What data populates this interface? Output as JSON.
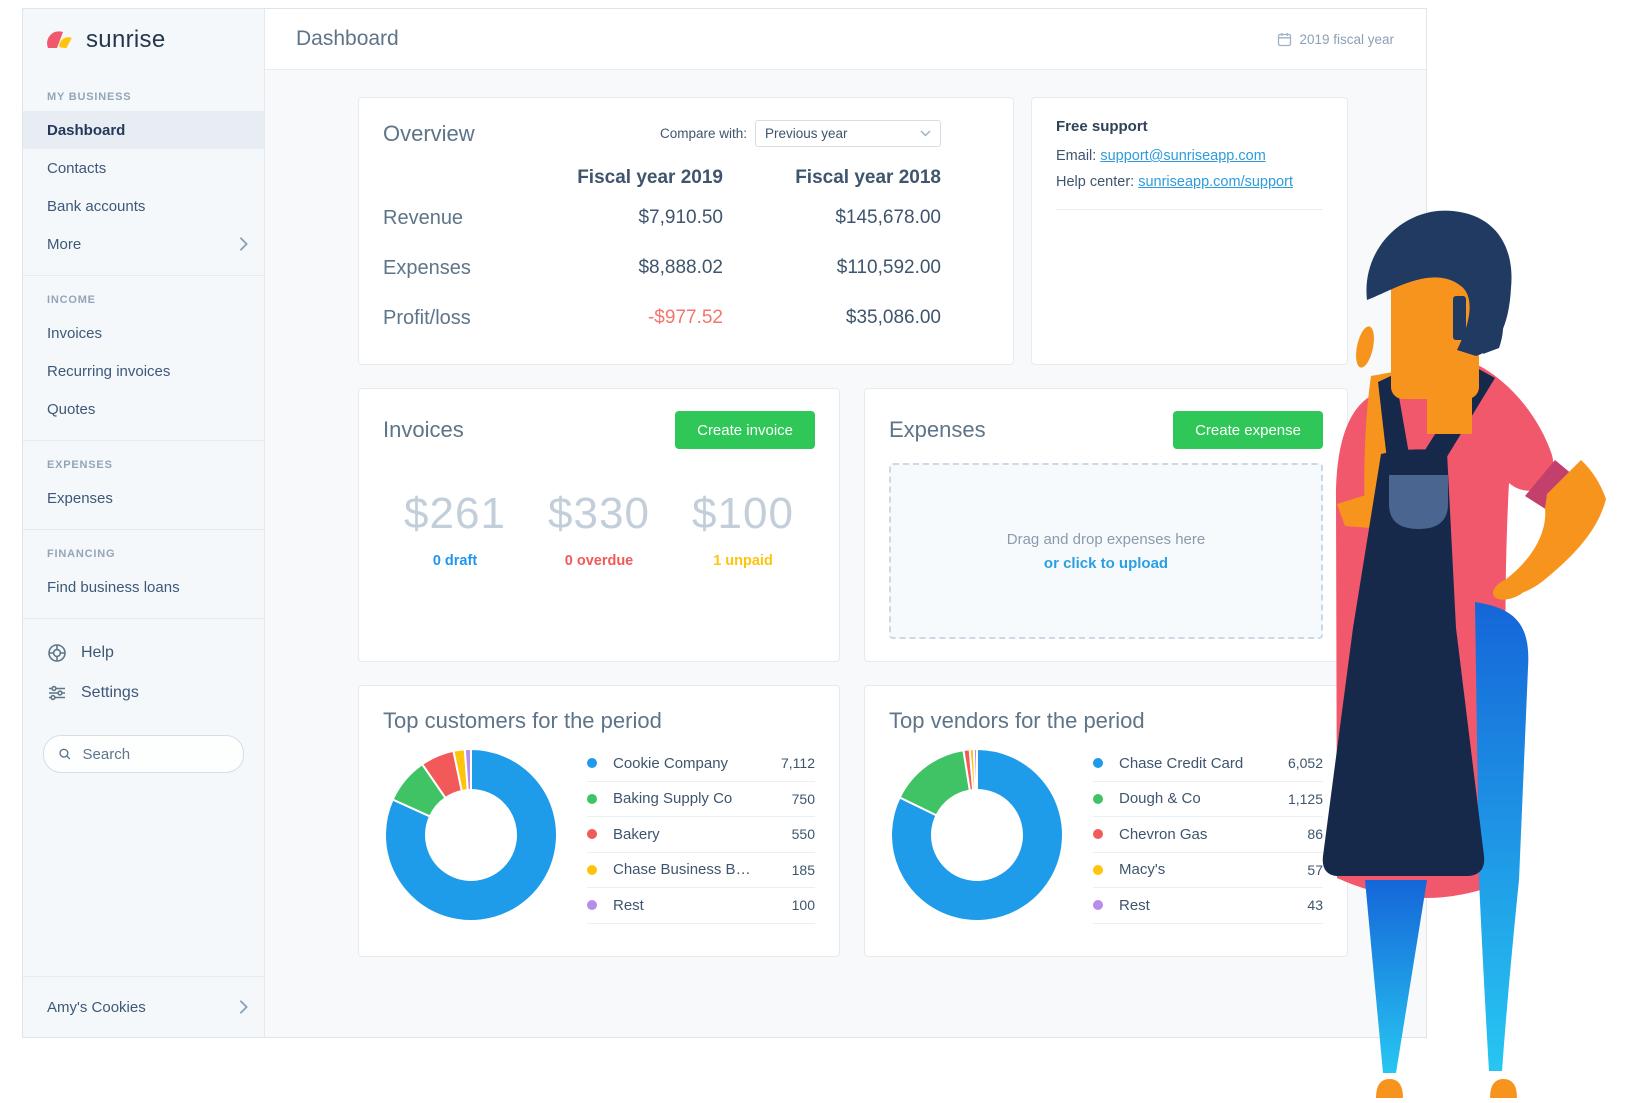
{
  "app": {
    "logo_text": "sunrise",
    "header_title": "Dashboard",
    "fiscal_badge": "2019 fiscal year"
  },
  "sidebar": {
    "sections": [
      {
        "label": "MY BUSINESS",
        "items": [
          {
            "label": "Dashboard",
            "active": true
          },
          {
            "label": "Contacts"
          },
          {
            "label": "Bank accounts"
          },
          {
            "label": "More",
            "chevron": true
          }
        ]
      },
      {
        "label": "INCOME",
        "items": [
          {
            "label": "Invoices"
          },
          {
            "label": "Recurring invoices"
          },
          {
            "label": "Quotes"
          }
        ]
      },
      {
        "label": "EXPENSES",
        "items": [
          {
            "label": "Expenses"
          }
        ]
      },
      {
        "label": "FINANCING",
        "items": [
          {
            "label": "Find business loans"
          }
        ]
      }
    ],
    "utility": [
      {
        "label": "Help",
        "icon": "help-icon"
      },
      {
        "label": "Settings",
        "icon": "settings-icon"
      }
    ],
    "search_placeholder": "Search",
    "company": "Amy's Cookies"
  },
  "overview": {
    "title": "Overview",
    "compare_label": "Compare with:",
    "compare_value": "Previous year",
    "columns": [
      "Fiscal year 2019",
      "Fiscal year 2018"
    ],
    "rows": [
      {
        "label": "Revenue",
        "values": [
          "$7,910.50",
          "$145,678.00"
        ],
        "negative": [
          false,
          false
        ]
      },
      {
        "label": "Expenses",
        "values": [
          "$8,888.02",
          "$110,592.00"
        ],
        "negative": [
          false,
          false
        ]
      },
      {
        "label": "Profit/loss",
        "values": [
          "-$977.52",
          "$35,086.00"
        ],
        "negative": [
          true,
          false
        ]
      }
    ]
  },
  "support": {
    "title": "Free support",
    "email_label": "Email:",
    "email_link": "support@sunriseapp.com",
    "help_label": "Help center:",
    "help_link": "sunriseapp.com/support"
  },
  "invoices_card": {
    "title": "Invoices",
    "button_label": "Create invoice",
    "stats": [
      {
        "amount": "$261",
        "label": "0 draft",
        "color": "#2196F0"
      },
      {
        "amount": "$330",
        "label": "0 overdue",
        "color": "#F25A5A"
      },
      {
        "amount": "$100",
        "label": "1 unpaid",
        "color": "#FFC40C"
      }
    ]
  },
  "expenses_card": {
    "title": "Expenses",
    "button_label": "Create expense",
    "dropzone_line1": "Drag and drop expenses here",
    "dropzone_line2": "or click to upload"
  },
  "chart_data": [
    {
      "type": "donut",
      "title": "Top customers for the period",
      "legend_position": "right",
      "series": [
        {
          "label": "Cookie Company",
          "value": 7112,
          "display": "7,112",
          "color": "#1E9BE9"
        },
        {
          "label": "Baking Supply Co",
          "value": 750,
          "display": "750",
          "color": "#3FC364"
        },
        {
          "label": "Bakery",
          "value": 550,
          "display": "550",
          "color": "#F25A5A"
        },
        {
          "label": "Chase Business B…",
          "value": 185,
          "display": "185",
          "color": "#FFC40C"
        },
        {
          "label": "Rest",
          "value": 100,
          "display": "100",
          "color": "#B78CEA"
        }
      ]
    },
    {
      "type": "donut",
      "title": "Top vendors for the period",
      "legend_position": "right",
      "series": [
        {
          "label": "Chase Credit Card",
          "value": 6052,
          "display": "6,052",
          "color": "#1E9BE9"
        },
        {
          "label": "Dough & Co",
          "value": 1125,
          "display": "1,125",
          "color": "#3FC364"
        },
        {
          "label": "Chevron Gas",
          "value": 86,
          "display": "86",
          "color": "#F25A5A"
        },
        {
          "label": "Macy's",
          "value": 57,
          "display": "57",
          "color": "#FFC40C"
        },
        {
          "label": "Rest",
          "value": 43,
          "display": "43",
          "color": "#B78CEA"
        }
      ]
    }
  ],
  "colors": {
    "accent_green": "#2EC758",
    "link_blue": "#2D9CDB",
    "negative_red": "#F4756C"
  }
}
